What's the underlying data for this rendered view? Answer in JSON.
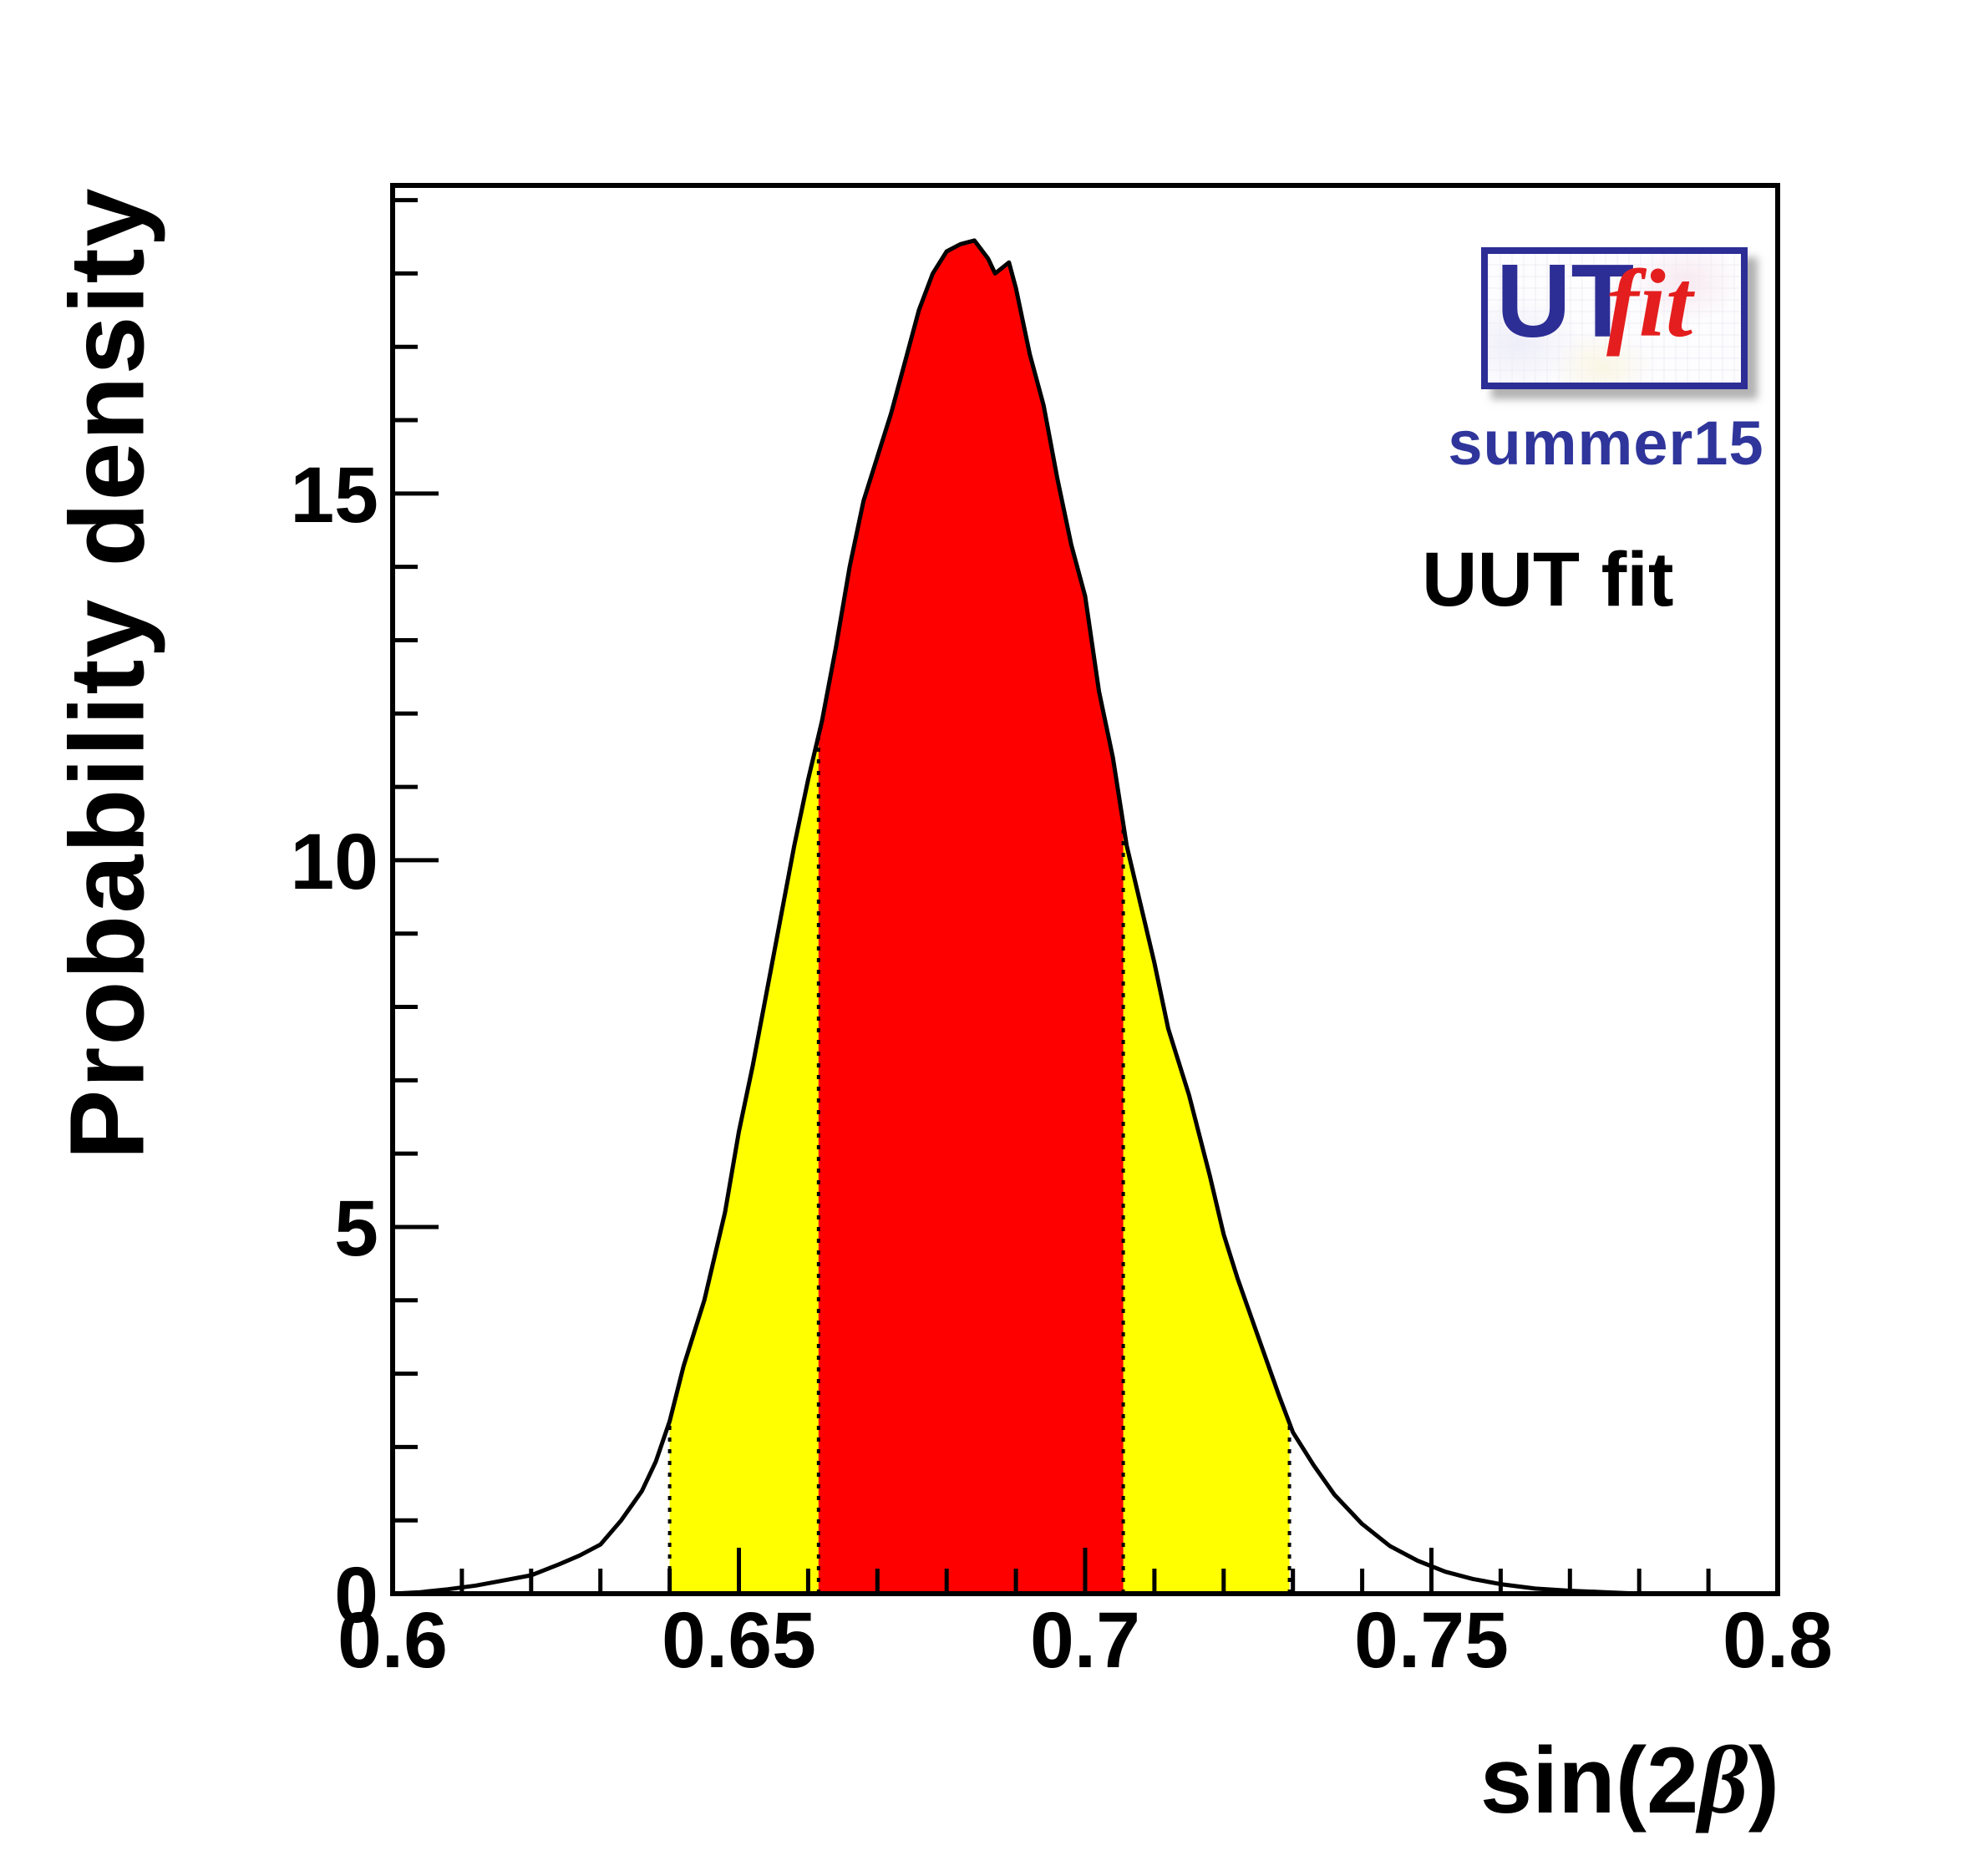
{
  "figure": {
    "ytitle": "Probability density",
    "xtitle": {
      "prefix": "sin(2",
      "beta": "β",
      "suffix": ")"
    },
    "watermark": {
      "logo_ut": "UT",
      "logo_fit": "fit",
      "subtitle": "summer15",
      "annotation": "UUT fit"
    },
    "colors": {
      "curve": "#000000",
      "band68": "#ff0000",
      "band95": "#ffff00",
      "frame": "#000000",
      "logo_border": "#2d2d96",
      "logo_red": "#e41e1e",
      "subtitle_navy": "#2f359b"
    }
  },
  "chart_data": {
    "type": "area",
    "title": "",
    "xlabel": "sin(2β)",
    "ylabel": "Probability density",
    "xlim": [
      0.6,
      0.8
    ],
    "ylim": [
      0,
      19.2
    ],
    "grid": false,
    "x_ticks": [
      {
        "value": 0.6,
        "label": "0.6"
      },
      {
        "value": 0.65,
        "label": "0.65"
      },
      {
        "value": 0.7,
        "label": "0.7"
      },
      {
        "value": 0.75,
        "label": "0.75"
      },
      {
        "value": 0.8,
        "label": "0.8"
      }
    ],
    "y_ticks": [
      {
        "value": 0,
        "label": "0"
      },
      {
        "value": 5,
        "label": "5"
      },
      {
        "value": 10,
        "label": "10"
      },
      {
        "value": 15,
        "label": "15"
      }
    ],
    "x_minor_step": 0.01,
    "y_minor_step": 1,
    "intervals": {
      "ci68": [
        0.6615,
        0.7055
      ],
      "ci95": [
        0.64,
        0.7295
      ]
    },
    "curve": {
      "x": [
        0.6,
        0.604,
        0.608,
        0.612,
        0.616,
        0.62,
        0.624,
        0.627,
        0.63,
        0.633,
        0.636,
        0.638,
        0.64,
        0.642,
        0.645,
        0.648,
        0.65,
        0.652,
        0.655,
        0.658,
        0.66,
        0.662,
        0.664,
        0.666,
        0.668,
        0.67,
        0.672,
        0.674,
        0.676,
        0.678,
        0.68,
        0.682,
        0.684,
        0.686,
        0.687,
        0.689,
        0.69,
        0.692,
        0.694,
        0.696,
        0.698,
        0.7,
        0.702,
        0.704,
        0.706,
        0.708,
        0.71,
        0.712,
        0.715,
        0.718,
        0.72,
        0.722,
        0.725,
        0.728,
        0.73,
        0.733,
        0.736,
        0.74,
        0.744,
        0.748,
        0.752,
        0.756,
        0.76,
        0.765,
        0.77,
        0.775,
        0.78
      ],
      "y": [
        0.0,
        0.02,
        0.06,
        0.11,
        0.18,
        0.25,
        0.4,
        0.52,
        0.67,
        1.0,
        1.4,
        1.8,
        2.35,
        3.1,
        4.0,
        5.2,
        6.3,
        7.2,
        8.7,
        10.2,
        11.1,
        11.9,
        12.9,
        14.0,
        14.9,
        15.5,
        16.1,
        16.8,
        17.5,
        18.0,
        18.3,
        18.4,
        18.45,
        18.2,
        18.0,
        18.15,
        17.8,
        16.9,
        16.2,
        15.2,
        14.3,
        13.6,
        12.3,
        11.4,
        10.2,
        9.4,
        8.6,
        7.7,
        6.8,
        5.7,
        4.9,
        4.3,
        3.5,
        2.7,
        2.2,
        1.75,
        1.35,
        0.95,
        0.65,
        0.45,
        0.3,
        0.2,
        0.13,
        0.07,
        0.04,
        0.02,
        0.0
      ]
    }
  }
}
